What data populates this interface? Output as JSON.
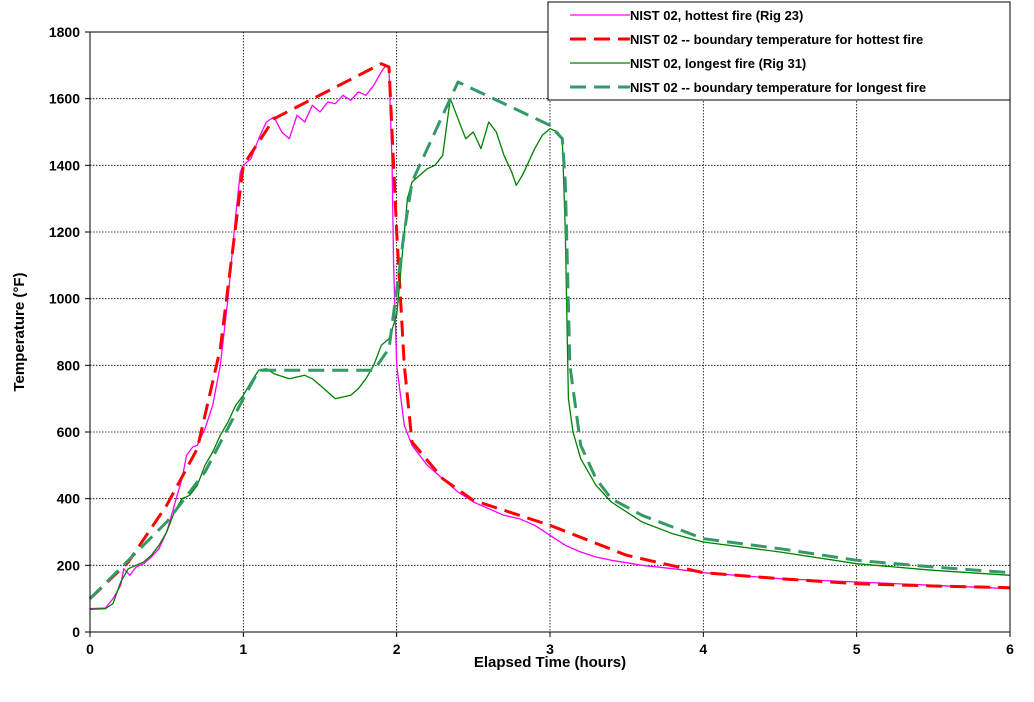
{
  "chart_data": {
    "type": "line",
    "title": "",
    "xlabel": "Elapsed Time (hours)",
    "ylabel": "Temperature (°F)",
    "xlim": [
      0,
      6
    ],
    "ylim": [
      0,
      1800
    ],
    "xticks": [
      0,
      1,
      2,
      3,
      4,
      5,
      6
    ],
    "yticks": [
      0,
      200,
      400,
      600,
      800,
      1000,
      1200,
      1400,
      1600,
      1800
    ],
    "grid": true,
    "legend_position": "top-right",
    "series": [
      {
        "name": "NIST 02, hottest fire (Rig 23)",
        "color": "#ff00ff",
        "style": "solid",
        "points": [
          [
            0,
            70
          ],
          [
            0.1,
            72
          ],
          [
            0.15,
            100
          ],
          [
            0.2,
            140
          ],
          [
            0.22,
            190
          ],
          [
            0.26,
            170
          ],
          [
            0.3,
            195
          ],
          [
            0.35,
            205
          ],
          [
            0.4,
            225
          ],
          [
            0.45,
            250
          ],
          [
            0.5,
            300
          ],
          [
            0.55,
            380
          ],
          [
            0.6,
            460
          ],
          [
            0.63,
            530
          ],
          [
            0.67,
            555
          ],
          [
            0.7,
            560
          ],
          [
            0.75,
            610
          ],
          [
            0.8,
            680
          ],
          [
            0.85,
            800
          ],
          [
            0.9,
            1000
          ],
          [
            0.95,
            1250
          ],
          [
            0.98,
            1380
          ],
          [
            1.0,
            1400
          ],
          [
            1.05,
            1420
          ],
          [
            1.1,
            1480
          ],
          [
            1.15,
            1530
          ],
          [
            1.2,
            1545
          ],
          [
            1.25,
            1500
          ],
          [
            1.3,
            1480
          ],
          [
            1.35,
            1550
          ],
          [
            1.4,
            1530
          ],
          [
            1.45,
            1580
          ],
          [
            1.5,
            1560
          ],
          [
            1.55,
            1590
          ],
          [
            1.6,
            1585
          ],
          [
            1.65,
            1610
          ],
          [
            1.7,
            1595
          ],
          [
            1.75,
            1620
          ],
          [
            1.8,
            1610
          ],
          [
            1.85,
            1640
          ],
          [
            1.9,
            1680
          ],
          [
            1.93,
            1700
          ],
          [
            1.95,
            1690
          ],
          [
            1.97,
            1400
          ],
          [
            1.98,
            1100
          ],
          [
            2.0,
            800
          ],
          [
            2.05,
            620
          ],
          [
            2.1,
            560
          ],
          [
            2.2,
            500
          ],
          [
            2.3,
            460
          ],
          [
            2.4,
            420
          ],
          [
            2.5,
            390
          ],
          [
            2.6,
            370
          ],
          [
            2.7,
            350
          ],
          [
            2.8,
            340
          ],
          [
            2.9,
            320
          ],
          [
            3.0,
            290
          ],
          [
            3.1,
            260
          ],
          [
            3.2,
            240
          ],
          [
            3.3,
            225
          ],
          [
            3.4,
            215
          ],
          [
            3.5,
            208
          ],
          [
            3.6,
            200
          ],
          [
            3.8,
            190
          ],
          [
            4.0,
            178
          ],
          [
            4.5,
            160
          ],
          [
            5.0,
            150
          ],
          [
            5.5,
            140
          ],
          [
            6.0,
            130
          ]
        ]
      },
      {
        "name": "NIST 02 -- boundary temperature for hottest fire",
        "color": "#ff0000",
        "style": "dashed",
        "points": [
          [
            0,
            100
          ],
          [
            0.25,
            210
          ],
          [
            0.5,
            380
          ],
          [
            0.7,
            550
          ],
          [
            0.85,
            850
          ],
          [
            1.0,
            1400
          ],
          [
            1.2,
            1540
          ],
          [
            1.9,
            1705
          ],
          [
            1.95,
            1695
          ],
          [
            2.0,
            1200
          ],
          [
            2.05,
            800
          ],
          [
            2.1,
            570
          ],
          [
            2.3,
            460
          ],
          [
            2.5,
            395
          ],
          [
            3.0,
            320
          ],
          [
            3.5,
            230
          ],
          [
            4.0,
            178
          ],
          [
            4.5,
            160
          ],
          [
            5.0,
            145
          ],
          [
            5.5,
            138
          ],
          [
            6.0,
            133
          ]
        ]
      },
      {
        "name": "NIST 02, longest fire (Rig 31)",
        "color": "#008000",
        "style": "solid",
        "points": [
          [
            0,
            68
          ],
          [
            0.1,
            70
          ],
          [
            0.15,
            85
          ],
          [
            0.2,
            150
          ],
          [
            0.25,
            190
          ],
          [
            0.3,
            200
          ],
          [
            0.35,
            210
          ],
          [
            0.4,
            230
          ],
          [
            0.45,
            260
          ],
          [
            0.5,
            300
          ],
          [
            0.55,
            360
          ],
          [
            0.6,
            400
          ],
          [
            0.65,
            410
          ],
          [
            0.7,
            440
          ],
          [
            0.75,
            500
          ],
          [
            0.8,
            540
          ],
          [
            0.85,
            590
          ],
          [
            0.9,
            630
          ],
          [
            0.95,
            680
          ],
          [
            1.0,
            710
          ],
          [
            1.05,
            750
          ],
          [
            1.1,
            785
          ],
          [
            1.15,
            790
          ],
          [
            1.2,
            775
          ],
          [
            1.3,
            760
          ],
          [
            1.4,
            770
          ],
          [
            1.45,
            760
          ],
          [
            1.5,
            740
          ],
          [
            1.55,
            720
          ],
          [
            1.6,
            700
          ],
          [
            1.65,
            705
          ],
          [
            1.7,
            710
          ],
          [
            1.75,
            730
          ],
          [
            1.8,
            760
          ],
          [
            1.85,
            800
          ],
          [
            1.9,
            860
          ],
          [
            1.95,
            880
          ],
          [
            2.0,
            950
          ],
          [
            2.03,
            1100
          ],
          [
            2.07,
            1300
          ],
          [
            2.1,
            1350
          ],
          [
            2.15,
            1370
          ],
          [
            2.2,
            1390
          ],
          [
            2.25,
            1400
          ],
          [
            2.3,
            1430
          ],
          [
            2.35,
            1600
          ],
          [
            2.4,
            1540
          ],
          [
            2.45,
            1480
          ],
          [
            2.5,
            1500
          ],
          [
            2.55,
            1450
          ],
          [
            2.6,
            1530
          ],
          [
            2.65,
            1500
          ],
          [
            2.7,
            1430
          ],
          [
            2.75,
            1380
          ],
          [
            2.78,
            1340
          ],
          [
            2.82,
            1370
          ],
          [
            2.9,
            1450
          ],
          [
            2.95,
            1490
          ],
          [
            3.0,
            1510
          ],
          [
            3.05,
            1500
          ],
          [
            3.08,
            1480
          ],
          [
            3.1,
            1200
          ],
          [
            3.12,
            700
          ],
          [
            3.15,
            600
          ],
          [
            3.2,
            520
          ],
          [
            3.3,
            440
          ],
          [
            3.4,
            390
          ],
          [
            3.5,
            360
          ],
          [
            3.6,
            330
          ],
          [
            3.8,
            295
          ],
          [
            4.0,
            270
          ],
          [
            4.5,
            240
          ],
          [
            5.0,
            205
          ],
          [
            5.5,
            185
          ],
          [
            6.0,
            170
          ]
        ]
      },
      {
        "name": "NIST 02 -- boundary temperature for longest fire",
        "color": "#339966",
        "style": "dashed",
        "points": [
          [
            0,
            100
          ],
          [
            0.5,
            330
          ],
          [
            0.75,
            480
          ],
          [
            1.0,
            700
          ],
          [
            1.1,
            785
          ],
          [
            1.85,
            785
          ],
          [
            1.95,
            850
          ],
          [
            2.05,
            1200
          ],
          [
            2.1,
            1350
          ],
          [
            2.4,
            1650
          ],
          [
            3.0,
            1520
          ],
          [
            3.08,
            1480
          ],
          [
            3.1,
            1350
          ],
          [
            3.13,
            800
          ],
          [
            3.2,
            560
          ],
          [
            3.3,
            460
          ],
          [
            3.4,
            400
          ],
          [
            3.6,
            350
          ],
          [
            4.0,
            280
          ],
          [
            4.5,
            250
          ],
          [
            5.0,
            215
          ],
          [
            5.5,
            195
          ],
          [
            6.0,
            178
          ]
        ]
      }
    ]
  }
}
